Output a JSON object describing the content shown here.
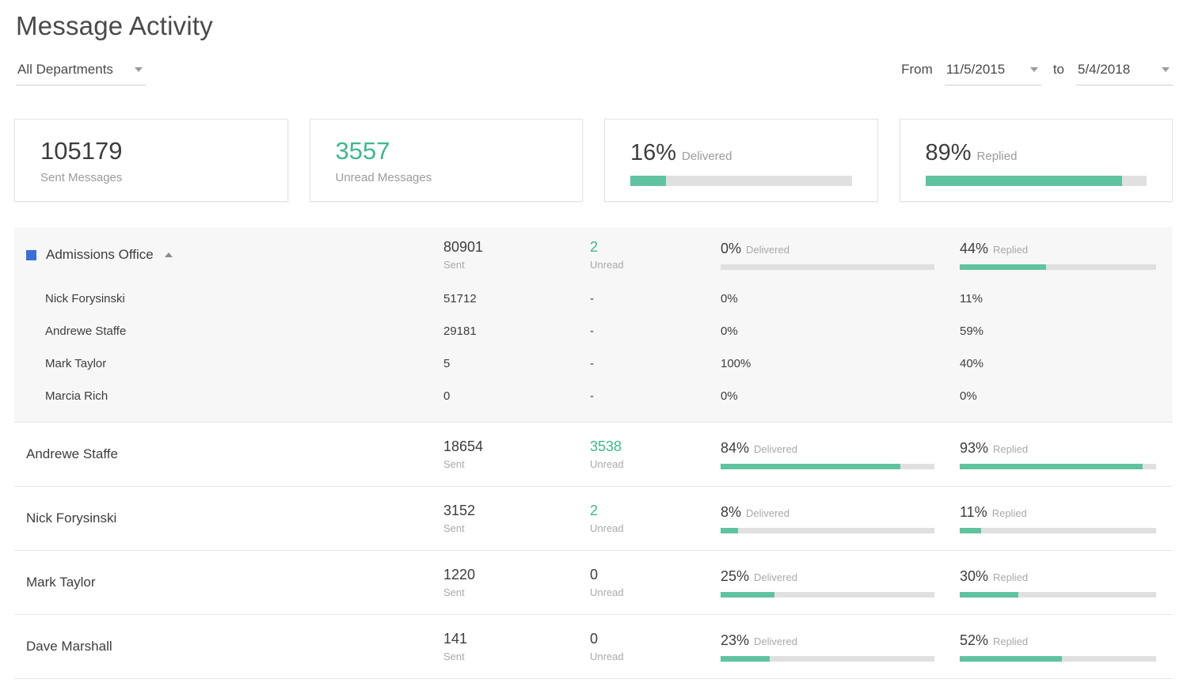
{
  "page": {
    "title": "Message Activity"
  },
  "filters": {
    "department_value": "All Departments",
    "from_label": "From",
    "from_value": "11/5/2015",
    "to_label": "to",
    "to_value": "5/4/2018"
  },
  "summary": {
    "sent": {
      "value": "105179",
      "label": "Sent Messages"
    },
    "unread": {
      "value": "3557",
      "label": "Unread Messages"
    },
    "delivered": {
      "value": "16%",
      "label": "Delivered",
      "percent": 16
    },
    "replied": {
      "value": "89%",
      "label": "Replied",
      "percent": 89
    }
  },
  "table": {
    "labels": {
      "sent": "Sent",
      "unread": "Unread",
      "delivered": "Delivered",
      "replied": "Replied"
    },
    "group": {
      "name": "Admissions Office",
      "sent": "80901",
      "unread": "2",
      "delivered": "0%",
      "delivered_pct": 0,
      "replied": "44%",
      "replied_pct": 44,
      "members": [
        {
          "name": "Nick Forysinski",
          "sent": "51712",
          "unread": "-",
          "delivered": "0%",
          "replied": "11%"
        },
        {
          "name": "Andrewe Staffe",
          "sent": "29181",
          "unread": "-",
          "delivered": "0%",
          "replied": "59%"
        },
        {
          "name": "Mark Taylor",
          "sent": "5",
          "unread": "-",
          "delivered": "100%",
          "replied": "40%"
        },
        {
          "name": "Marcia Rich",
          "sent": "0",
          "unread": "-",
          "delivered": "0%",
          "replied": "0%"
        }
      ]
    },
    "rows": [
      {
        "name": "Andrewe Staffe",
        "sent": "18654",
        "unread": "3538",
        "unread_green": true,
        "delivered": "84%",
        "delivered_pct": 84,
        "replied": "93%",
        "replied_pct": 93
      },
      {
        "name": "Nick Forysinski",
        "sent": "3152",
        "unread": "2",
        "unread_green": true,
        "delivered": "8%",
        "delivered_pct": 8,
        "replied": "11%",
        "replied_pct": 11
      },
      {
        "name": "Mark Taylor",
        "sent": "1220",
        "unread": "0",
        "unread_green": false,
        "delivered": "25%",
        "delivered_pct": 25,
        "replied": "30%",
        "replied_pct": 30
      },
      {
        "name": "Dave Marshall",
        "sent": "141",
        "unread": "0",
        "unread_green": false,
        "delivered": "23%",
        "delivered_pct": 23,
        "replied": "52%",
        "replied_pct": 52
      }
    ]
  },
  "colors": {
    "green": "#5fc3a0",
    "green_text": "#3db88f",
    "blue": "#3b6fd8",
    "track": "#e0e0e0"
  }
}
